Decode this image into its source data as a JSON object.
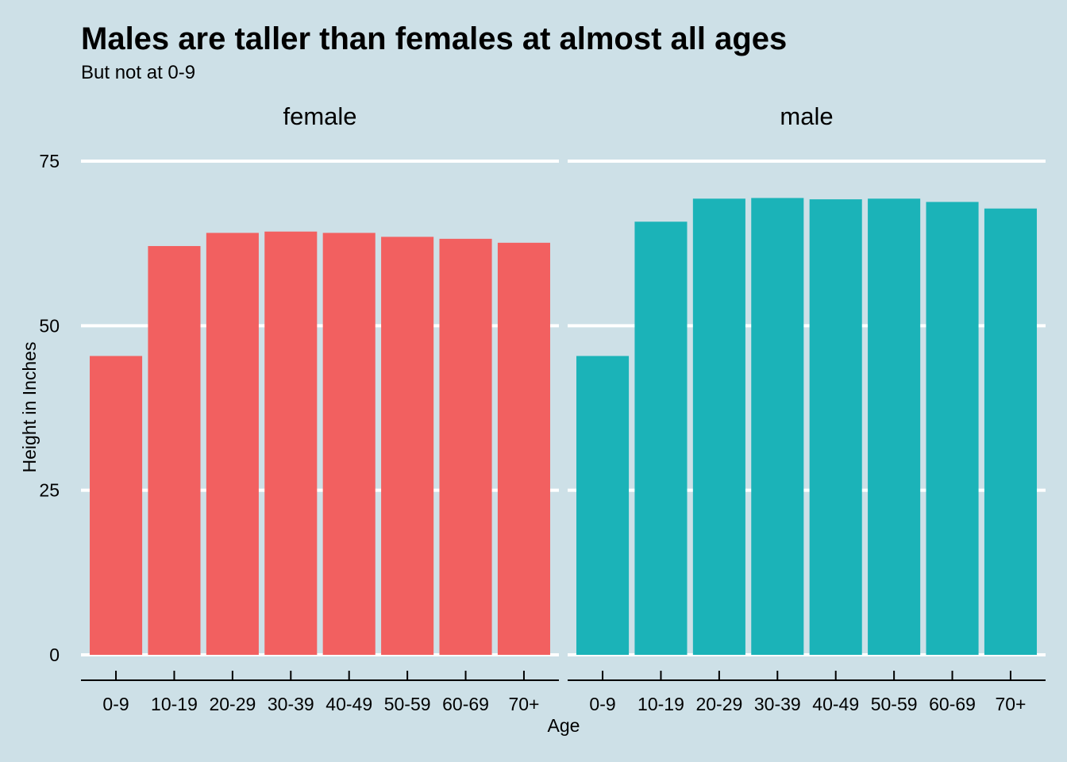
{
  "chart_data": {
    "type": "bar",
    "title": "Males are taller than females at almost all ages",
    "subtitle": "But not at 0-9",
    "xlabel": "Age",
    "ylabel": "Height in Inches",
    "ylim": [
      0,
      75
    ],
    "yticks": [
      0,
      25,
      50,
      75
    ],
    "grid": "horizontal",
    "legend": "none",
    "categories": [
      "0-9",
      "10-19",
      "20-29",
      "30-39",
      "40-49",
      "50-59",
      "60-69",
      "70+"
    ],
    "facets": [
      {
        "name": "female",
        "color": "#f26060",
        "values": [
          45.4,
          62.1,
          64.1,
          64.3,
          64.1,
          63.5,
          63.2,
          62.6
        ]
      },
      {
        "name": "male",
        "color": "#1bb3b8",
        "values": [
          45.4,
          65.8,
          69.3,
          69.4,
          69.2,
          69.3,
          68.8,
          67.8
        ]
      }
    ]
  },
  "colors": {
    "background": "#cde0e7",
    "grid": "#ffffff",
    "axis": "#000000"
  }
}
